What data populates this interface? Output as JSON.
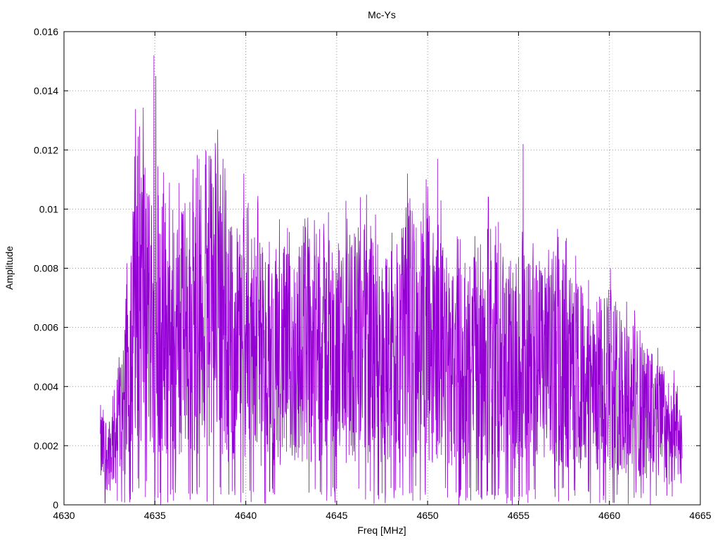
{
  "chart_data": {
    "type": "line",
    "title": "Mc-Ys",
    "xlabel": "Freq [MHz]",
    "ylabel": "Amplitude",
    "xlim": [
      4630,
      4665
    ],
    "ylim": [
      0,
      0.016
    ],
    "x_ticks": [
      "4630",
      "4635",
      "4640",
      "4645",
      "4650",
      "4655",
      "4660",
      "4665"
    ],
    "y_ticks": [
      "0",
      "0.002",
      "0.004",
      "0.006",
      "0.008",
      "0.01",
      "0.012",
      "0.014",
      "0.016"
    ],
    "grid": true,
    "line_color": "#9400d3",
    "series": [
      {
        "x": [
          4632.0,
          4632.5,
          4633.0,
          4633.5,
          4634.0,
          4634.5,
          4635.0,
          4635.5,
          4636.0,
          4636.5,
          4637.0,
          4637.5,
          4638.0,
          4638.5,
          4639.0,
          4639.5,
          4640.0,
          4640.5,
          4641.0,
          4641.5,
          4642.0,
          4642.5,
          4643.0,
          4643.5,
          4644.0,
          4644.5,
          4645.0,
          4645.5,
          4646.0,
          4646.5,
          4647.0,
          4647.5,
          4648.0,
          4648.5,
          4649.0,
          4649.5,
          4650.0,
          4650.5,
          4651.0,
          4651.5,
          4652.0,
          4652.5,
          4653.0,
          4653.5,
          4654.0,
          4654.5,
          4655.0,
          4655.5,
          4656.0,
          4656.5,
          4657.0,
          4657.5,
          4658.0,
          4658.5,
          4659.0,
          4659.5,
          4660.0,
          4660.5,
          4661.0,
          4661.5,
          4662.0,
          4662.5,
          4663.0,
          4663.5,
          4664.0
        ],
        "y": [
          0.002,
          0.0018,
          0.0028,
          0.0045,
          0.008,
          0.007,
          0.006,
          0.0065,
          0.0055,
          0.006,
          0.006,
          0.0065,
          0.007,
          0.0068,
          0.0058,
          0.0055,
          0.006,
          0.0058,
          0.005,
          0.005,
          0.0052,
          0.005,
          0.0053,
          0.0055,
          0.0058,
          0.0055,
          0.0052,
          0.0055,
          0.0058,
          0.0056,
          0.0054,
          0.005,
          0.005,
          0.0055,
          0.006,
          0.006,
          0.0058,
          0.0056,
          0.0055,
          0.005,
          0.0048,
          0.005,
          0.0055,
          0.0055,
          0.005,
          0.0048,
          0.005,
          0.0052,
          0.005,
          0.0048,
          0.005,
          0.005,
          0.0045,
          0.0044,
          0.004,
          0.0042,
          0.0045,
          0.004,
          0.0038,
          0.0036,
          0.0032,
          0.003,
          0.0028,
          0.0025,
          0.0018
        ],
        "peaks": [
          {
            "x": 4634.05,
            "y": 0.0118
          },
          {
            "x": 4634.95,
            "y": 0.0152
          },
          {
            "x": 4635.05,
            "y": 0.0145
          },
          {
            "x": 4638.05,
            "y": 0.0118
          },
          {
            "x": 4638.75,
            "y": 0.0117
          },
          {
            "x": 4639.9,
            "y": 0.0112
          },
          {
            "x": 4646.3,
            "y": 0.0104
          },
          {
            "x": 4648.9,
            "y": 0.0112
          },
          {
            "x": 4650.55,
            "y": 0.0117
          },
          {
            "x": 4655.25,
            "y": 0.0122
          },
          {
            "x": 4660.05,
            "y": 0.008
          }
        ],
        "dips": [
          {
            "x": 4639.85,
            "y": 0.0004
          },
          {
            "x": 4641.5,
            "y": 0.0004
          },
          {
            "x": 4649.1,
            "y": 0.0004
          },
          {
            "x": 4651.8,
            "y": 0.0003
          },
          {
            "x": 4654.65,
            "y": 0.0
          },
          {
            "x": 4655.05,
            "y": 0.0003
          },
          {
            "x": 4664.05,
            "y": 0.0
          }
        ]
      }
    ]
  }
}
